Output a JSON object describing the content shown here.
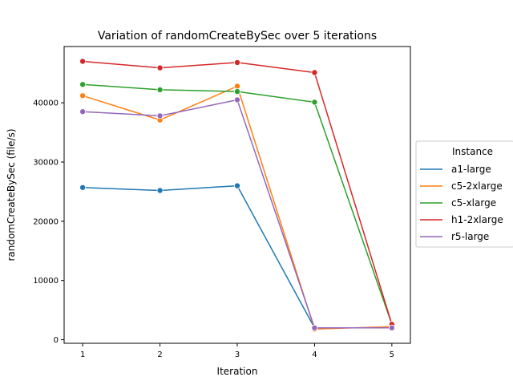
{
  "chart_data": {
    "type": "line",
    "title": "Variation of randomCreateBySec over 5 iterations",
    "xlabel": "Iteration",
    "ylabel": "randomCreateBySec (file/s)",
    "x": [
      1,
      2,
      3,
      4,
      5
    ],
    "xlim": [
      0.76,
      5.24
    ],
    "ylim": [
      -600,
      49500
    ],
    "xticks": [
      1,
      2,
      3,
      4,
      5
    ],
    "yticks": [
      0,
      10000,
      20000,
      30000,
      40000
    ],
    "legend": {
      "title": "Instance",
      "placement": "center-right outside"
    },
    "grid": false,
    "series": [
      {
        "name": "a1-large",
        "color": "#1f77b4",
        "values": [
          25700,
          25200,
          26000,
          2000,
          2000
        ]
      },
      {
        "name": "c5-2xlarge",
        "color": "#ff7f0e",
        "values": [
          41200,
          37100,
          42800,
          1800,
          2200
        ]
      },
      {
        "name": "c5-xlarge",
        "color": "#2ca02c",
        "values": [
          43100,
          42200,
          41900,
          40100,
          2600
        ]
      },
      {
        "name": "h1-2xlarge",
        "color": "#d62728",
        "values": [
          47000,
          45900,
          46800,
          45100,
          2600
        ]
      },
      {
        "name": "r5-large",
        "color": "#9467bd",
        "values": [
          38500,
          37800,
          40500,
          2000,
          2000
        ]
      }
    ]
  }
}
